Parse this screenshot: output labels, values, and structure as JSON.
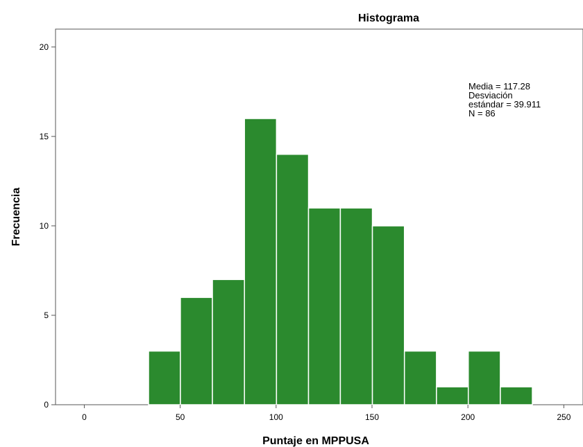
{
  "chart_data": {
    "type": "bar",
    "title": "Histograma",
    "xlabel": "Puntaje en MPPUSA",
    "ylabel": "Frecuencia",
    "xlim": [
      -15,
      260
    ],
    "ylim": [
      0,
      21
    ],
    "x_ticks": [
      0,
      50,
      100,
      150,
      200,
      250
    ],
    "y_ticks": [
      0,
      5,
      10,
      15,
      20
    ],
    "bins": [
      {
        "start": 33.5,
        "end": 50.1,
        "count": 3
      },
      {
        "start": 50.1,
        "end": 66.8,
        "count": 6
      },
      {
        "start": 66.8,
        "end": 83.5,
        "count": 7
      },
      {
        "start": 83.5,
        "end": 100.2,
        "count": 16
      },
      {
        "start": 100.2,
        "end": 116.9,
        "count": 14
      },
      {
        "start": 116.9,
        "end": 133.5,
        "count": 11
      },
      {
        "start": 133.5,
        "end": 150.2,
        "count": 11
      },
      {
        "start": 150.2,
        "end": 166.9,
        "count": 10
      },
      {
        "start": 166.9,
        "end": 183.6,
        "count": 3
      },
      {
        "start": 183.6,
        "end": 200.2,
        "count": 1
      },
      {
        "start": 200.2,
        "end": 216.9,
        "count": 3
      },
      {
        "start": 216.9,
        "end": 233.6,
        "count": 1
      }
    ],
    "stats_lines": [
      "Media = 117.28",
      "Desviación",
      "estándar = 39.911",
      "N = 86"
    ],
    "legend_position": "top-right",
    "grid": false,
    "colors": {
      "bar": "#2b8a2e",
      "bar_edge": "#ffffff",
      "frame": "#555555"
    }
  }
}
